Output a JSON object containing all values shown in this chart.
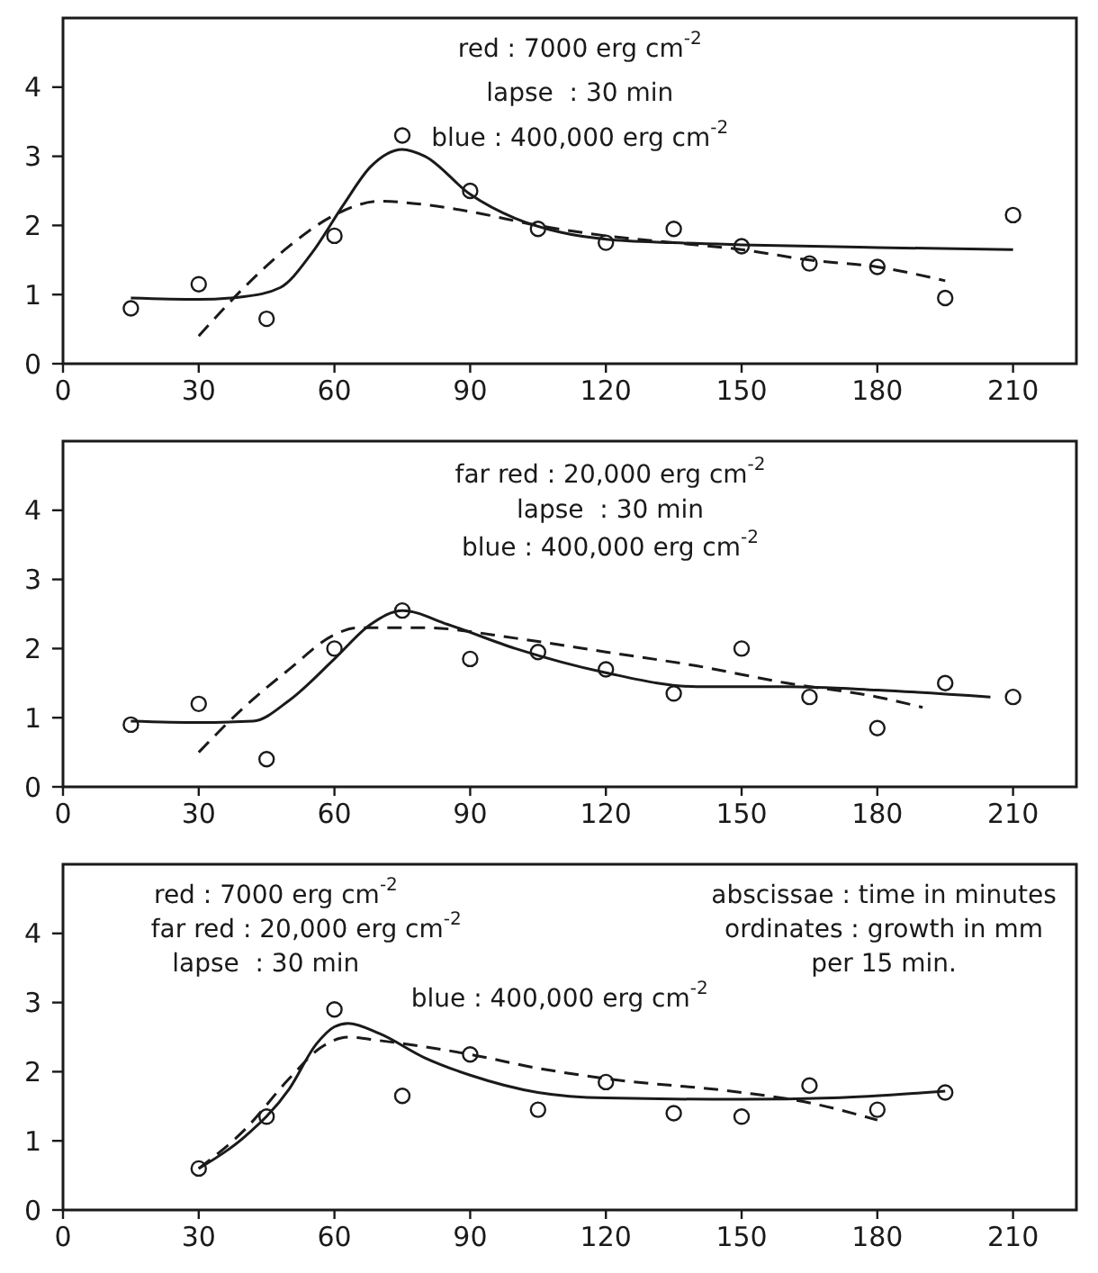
{
  "chart_data": [
    {
      "type": "scatter",
      "xlim": [
        0,
        224
      ],
      "ylim": [
        0,
        5
      ],
      "xticks": [
        0,
        30,
        60,
        90,
        120,
        150,
        180,
        210
      ],
      "yticks": [
        0,
        1,
        2,
        3,
        4
      ],
      "annotations": [
        "red : 7000 erg cm$^{-2}$",
        "lapse  : 30 min",
        "blue : 400,000 erg cm$^{-2}$"
      ],
      "series": [
        {
          "marker": "circle",
          "color": "#1a1a1a",
          "x": [
            15,
            30,
            45,
            60,
            75,
            90,
            105,
            120,
            135,
            150,
            165,
            180,
            195,
            210
          ],
          "values": [
            0.8,
            1.15,
            0.65,
            1.85,
            3.3,
            2.5,
            1.95,
            1.75,
            1.95,
            1.7,
            1.45,
            1.4,
            0.95,
            2.15
          ]
        },
        {
          "type": "line",
          "line_style": "solid",
          "color": "#1a1a1a",
          "x": [
            15,
            30,
            40,
            48,
            55,
            62,
            68,
            75,
            80,
            90,
            100,
            110,
            120,
            135,
            150,
            180,
            210
          ],
          "values": [
            0.95,
            0.93,
            0.97,
            1.1,
            1.6,
            2.3,
            2.85,
            3.1,
            3.0,
            2.45,
            2.1,
            1.9,
            1.8,
            1.75,
            1.72,
            1.68,
            1.65
          ]
        },
        {
          "type": "line",
          "line_style": "dashed",
          "color": "#1a1a1a",
          "x": [
            30,
            40,
            50,
            60,
            70,
            80,
            90,
            105,
            120,
            135,
            150,
            165,
            180,
            195
          ],
          "values": [
            0.4,
            1.1,
            1.7,
            2.15,
            2.35,
            2.3,
            2.2,
            2.0,
            1.85,
            1.75,
            1.65,
            1.5,
            1.4,
            1.2
          ]
        }
      ]
    },
    {
      "type": "scatter",
      "xlim": [
        0,
        224
      ],
      "ylim": [
        0,
        5
      ],
      "xticks": [
        0,
        30,
        60,
        90,
        120,
        150,
        180,
        210
      ],
      "yticks": [
        0,
        1,
        2,
        3,
        4
      ],
      "annotations": [
        "far red : 20,000 erg cm$^{-2}$",
        "lapse  : 30 min",
        "blue : 400,000 erg cm$^{-2}$"
      ],
      "series": [
        {
          "marker": "circle",
          "color": "#1a1a1a",
          "x": [
            15,
            30,
            45,
            60,
            75,
            90,
            105,
            120,
            135,
            150,
            165,
            180,
            195,
            210
          ],
          "values": [
            0.9,
            1.2,
            0.4,
            2.0,
            2.55,
            1.85,
            1.95,
            1.7,
            1.35,
            2.0,
            1.3,
            0.85,
            1.5,
            1.3
          ]
        },
        {
          "type": "line",
          "line_style": "solid",
          "color": "#1a1a1a",
          "x": [
            15,
            30,
            42,
            50,
            60,
            68,
            75,
            85,
            100,
            120,
            140,
            160,
            180,
            205
          ],
          "values": [
            0.95,
            0.93,
            0.95,
            1.25,
            1.85,
            2.35,
            2.55,
            2.35,
            2.0,
            1.65,
            1.45,
            1.45,
            1.4,
            1.3
          ]
        },
        {
          "type": "line",
          "line_style": "dashed",
          "color": "#1a1a1a",
          "x": [
            30,
            40,
            50,
            60,
            65,
            80,
            100,
            120,
            140,
            160,
            180,
            190
          ],
          "values": [
            0.5,
            1.15,
            1.7,
            2.2,
            2.3,
            2.3,
            2.15,
            1.95,
            1.75,
            1.5,
            1.3,
            1.15
          ]
        }
      ]
    },
    {
      "type": "scatter",
      "xlim": [
        0,
        224
      ],
      "ylim": [
        0,
        5
      ],
      "xticks": [
        0,
        30,
        60,
        90,
        120,
        150,
        180,
        210
      ],
      "yticks": [
        0,
        1,
        2,
        3,
        4
      ],
      "annotations": [
        "red : 7000 erg cm$^{-2}$",
        "far red : 20,000 erg cm$^{-2}$",
        "lapse  : 30 min",
        "blue : 400,000 erg cm$^{-2}$",
        "abscissae : time in minutes",
        "ordinates : growth in mm",
        "per 15 min."
      ],
      "series": [
        {
          "marker": "circle",
          "color": "#1a1a1a",
          "x": [
            30,
            45,
            60,
            75,
            90,
            105,
            120,
            135,
            150,
            165,
            180,
            195
          ],
          "values": [
            0.6,
            1.35,
            2.9,
            1.65,
            2.25,
            1.45,
            1.85,
            1.4,
            1.35,
            1.8,
            1.45,
            1.7
          ]
        },
        {
          "type": "line",
          "line_style": "solid",
          "color": "#1a1a1a",
          "x": [
            30,
            40,
            50,
            56,
            60,
            63,
            70,
            80,
            90,
            105,
            120,
            150,
            170,
            195
          ],
          "values": [
            0.6,
            1.05,
            1.75,
            2.4,
            2.65,
            2.7,
            2.55,
            2.2,
            1.95,
            1.7,
            1.62,
            1.6,
            1.62,
            1.72
          ]
        },
        {
          "type": "line",
          "line_style": "dashed",
          "color": "#1a1a1a",
          "x": [
            30,
            40,
            50,
            57,
            63,
            70,
            90,
            105,
            120,
            150,
            165,
            180
          ],
          "values": [
            0.6,
            1.15,
            1.9,
            2.35,
            2.5,
            2.45,
            2.25,
            2.05,
            1.9,
            1.7,
            1.55,
            1.3
          ]
        }
      ]
    }
  ]
}
